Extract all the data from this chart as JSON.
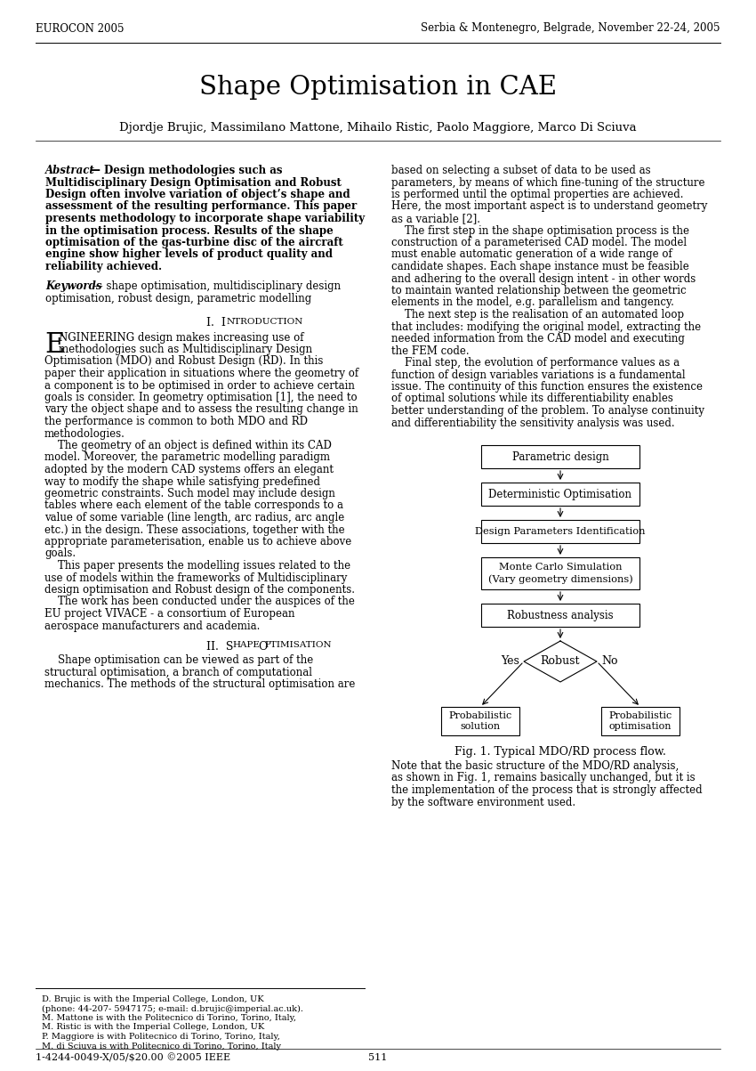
{
  "header_left": "EUROCON 2005",
  "header_right": "Serbia & Montenegro, Belgrade, November 22-24, 2005",
  "title": "Shape Optimisation in CAE",
  "authors": "Djordje Brujic, Massimilano Mattone, Mihailo Ristic, Paolo Maggiore, Marco Di Sciuva",
  "fig_caption": "Fig. 1. Typical MDO/RD process flow.",
  "footer_left_lines": [
    "D. Brujic is with the Imperial College, London, UK",
    "(phone: 44-207- 5947175; e-mail: d.brujic@imperial.ac.uk).",
    "M. Mattone is with the Politecnico di Torino, Torino, Italy,",
    "M. Ristic is with the Imperial College, London, UK",
    "P. Maggiore is with Politecnico di Torino, Torino, Italy,",
    "M. di Sciuva is with Politecnico di Torino, Torino, Italy"
  ],
  "footer_isbn": "1-4244-0049-X/05/$20.00 ©2005 IEEE",
  "footer_page": "511",
  "bg_color": "#ffffff"
}
